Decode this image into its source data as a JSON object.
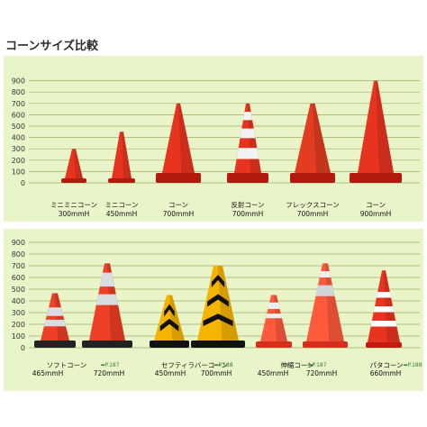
{
  "title": "コーンサイズ比較",
  "chart_data": [
    {
      "type": "bar",
      "ylim": [
        0,
        900
      ],
      "yticks": [
        0,
        100,
        200,
        300,
        400,
        500,
        600,
        700,
        800,
        900
      ],
      "grid": true,
      "colors": {
        "cone": "#e8341f",
        "cone_dark": "#b31a0e",
        "reflective": "#f2f2f2"
      },
      "items": [
        {
          "name": "ミニミニコーン",
          "size": "300mmH",
          "value": 300,
          "style": "plain"
        },
        {
          "name": "ミニコーン",
          "size": "450mmH",
          "value": 450,
          "style": "plain"
        },
        {
          "name": "コーン",
          "size": "700mmH",
          "value": 700,
          "style": "plain"
        },
        {
          "name": "反射コーン",
          "size": "700mmH",
          "value": 700,
          "style": "reflective"
        },
        {
          "name": "フレックスコーン",
          "size": "700mmH",
          "value": 700,
          "style": "flex"
        },
        {
          "name": "コーン",
          "size": "900mmH",
          "value": 900,
          "style": "plain"
        }
      ]
    },
    {
      "type": "bar",
      "ylim": [
        0,
        900
      ],
      "yticks": [
        0,
        100,
        200,
        300,
        400,
        500,
        600,
        700,
        800,
        900
      ],
      "grid": true,
      "colors": {
        "soft": "#ee3f28",
        "safety_yellow": "#f5b400",
        "safety_black": "#111111",
        "telescopic": "#ff5a3c",
        "pata": "#e8341f"
      },
      "groups": [
        {
          "name": "ソフトコーン",
          "ref": "➡P.187",
          "sizes": [
            "465mmH",
            "720mmH"
          ],
          "values": [
            465,
            720
          ],
          "style": "soft"
        },
        {
          "name": "セフティラバーコーン",
          "ref": "➡P.188",
          "sizes": [
            "450mmH",
            "700mmH"
          ],
          "values": [
            450,
            700
          ],
          "style": "safety"
        },
        {
          "name": "伸縮コーン",
          "ref": "➡P.187",
          "sizes": [
            "450mmH",
            "720mmH"
          ],
          "values": [
            450,
            720
          ],
          "style": "telescopic"
        },
        {
          "name": "パタコーン",
          "ref": "➡P.188",
          "sizes": [
            "660mmH"
          ],
          "values": [
            660
          ],
          "style": "pata"
        }
      ]
    }
  ]
}
